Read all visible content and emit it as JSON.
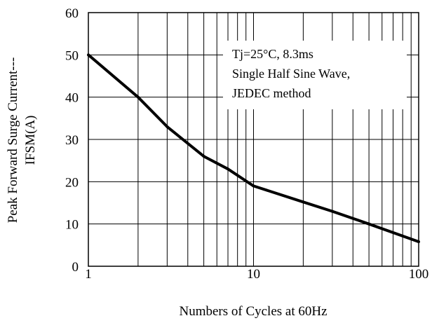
{
  "chart_data": {
    "type": "line",
    "title": "",
    "xlabel": "Numbers of Cycles at 60Hz",
    "ylabel": "Peak Forward Surge Current---",
    "ylabel_line2": "IFSM(A)",
    "x_scale": "log",
    "xlim": [
      1,
      100
    ],
    "ylim": [
      0,
      60
    ],
    "x_ticks": [
      1,
      10,
      100
    ],
    "x_tick_labels": [
      "1",
      "10",
      "100"
    ],
    "y_ticks": [
      0,
      10,
      20,
      30,
      40,
      50,
      60
    ],
    "y_tick_labels": [
      "0",
      "10",
      "20",
      "30",
      "40",
      "50",
      "60"
    ],
    "grid": true,
    "annotation_lines": [
      "Tj=25°C, 8.3ms",
      "Single Half Sine Wave,",
      "JEDEC method"
    ],
    "series": [
      {
        "x": [
          1,
          2,
          3,
          5,
          7,
          10,
          20,
          30,
          50,
          100
        ],
        "y": [
          50,
          40,
          33,
          26,
          23,
          19,
          15.2,
          13,
          10,
          5.8
        ]
      }
    ]
  }
}
